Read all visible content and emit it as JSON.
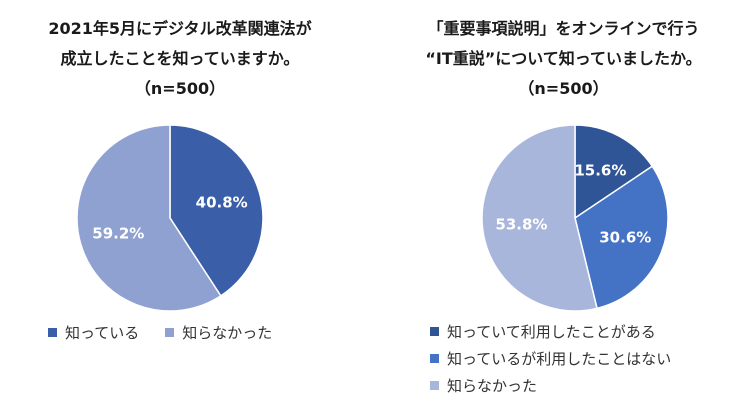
{
  "chart_data": [
    {
      "type": "pie",
      "title_lines": [
        "2021年5月にデジタル改革関連法が",
        "成立したことを知っていますか。",
        "（n=500）"
      ],
      "categories": [
        "知っている",
        "知らなかった"
      ],
      "values": [
        40.8,
        59.2
      ],
      "labels": [
        "40.8%",
        "59.2%"
      ],
      "colors": [
        "#3a5ea8",
        "#8fa1d0"
      ],
      "start_angle_deg": 0,
      "direction": "clockwise",
      "legend": "bottom"
    },
    {
      "type": "pie",
      "title_lines": [
        "「重要事項説明」をオンラインで行う",
        "“IT重説”について知っていましたか。",
        "（n=500）"
      ],
      "categories": [
        "知っていて利用したことがある",
        "知っているが利用したことはない",
        "知らなかった"
      ],
      "values": [
        15.6,
        30.6,
        53.8
      ],
      "labels": [
        "15.6%",
        "30.6%",
        "53.8%"
      ],
      "colors": [
        "#2f5597",
        "#4472c4",
        "#a9b6dc"
      ],
      "start_angle_deg": 0,
      "direction": "clockwise",
      "legend": "bottom"
    }
  ]
}
